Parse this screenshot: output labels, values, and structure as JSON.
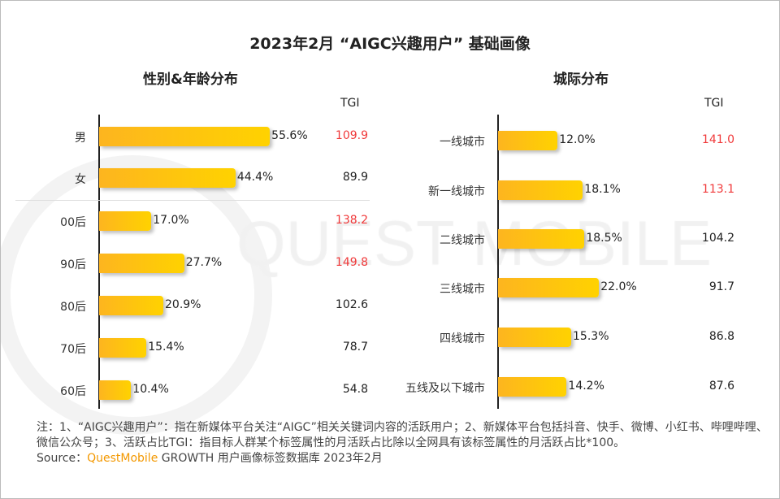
{
  "title": "2023年2月 “AIGC兴趣用户” 基础画像",
  "watermark": "QUEST MOBILE",
  "chart_data": [
    {
      "type": "bar",
      "orientation": "horizontal",
      "title": "性别&年龄分布",
      "tgi_header": "TGI",
      "categories": [
        "男",
        "女",
        "00后",
        "90后",
        "80后",
        "70后",
        "60后"
      ],
      "values": [
        55.6,
        44.4,
        17.0,
        27.7,
        20.9,
        15.4,
        10.4
      ],
      "value_labels": [
        "55.6%",
        "44.4%",
        "17.0%",
        "27.7%",
        "20.9%",
        "15.4%",
        "10.4%"
      ],
      "tgi": [
        "109.9",
        "89.9",
        "138.2",
        "149.8",
        "102.6",
        "78.7",
        "54.8"
      ],
      "tgi_highlight": [
        true,
        false,
        true,
        true,
        false,
        false,
        false
      ]
    },
    {
      "type": "bar",
      "orientation": "horizontal",
      "title": "城际分布",
      "tgi_header": "TGI",
      "categories": [
        "一线城市",
        "新一线城市",
        "二线城市",
        "三线城市",
        "四线城市",
        "五线及以下城市"
      ],
      "values": [
        12.0,
        18.1,
        18.5,
        22.0,
        15.3,
        14.2
      ],
      "value_labels": [
        "12.0%",
        "18.1%",
        "18.5%",
        "22.0%",
        "15.3%",
        "14.2%"
      ],
      "tgi": [
        "141.0",
        "113.1",
        "104.2",
        "91.7",
        "86.8",
        "87.6"
      ],
      "tgi_highlight": [
        true,
        true,
        false,
        false,
        false,
        false
      ]
    }
  ],
  "colors": {
    "bar_start": "#fdb51f",
    "bar_end": "#ffd200",
    "tgi_highlight": "#f0393a",
    "brand": "#f39800"
  },
  "note": "注：1、“AIGC兴趣用户”：指在新媒体平台关注“AIGC”相关关键词内容的活跃用户；2、新媒体平台包括抖音、快手、微博、小红书、哔哩哔哩、微信公众号；3、活跃占比TGI：指目标人群某个标签属性的月活跃占比除以全网具有该标签属性的月活跃占比*100。",
  "source": {
    "prefix": "Source：",
    "brand": "QuestMobile",
    "suffix": " GROWTH 用户画像标签数据库 2023年2月"
  }
}
